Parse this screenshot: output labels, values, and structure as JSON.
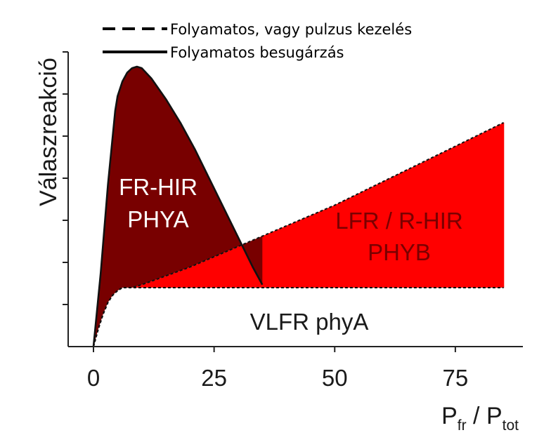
{
  "chart_data": {
    "type": "area",
    "legend": {
      "placement": "top-left",
      "entries": [
        {
          "label": "Folyamatos, vagy pulzus kezelés",
          "line_style": "dashed"
        },
        {
          "label": "Folyamatos besugárzás",
          "line_style": "solid"
        }
      ]
    },
    "ylabel": "Válaszreakció",
    "xlabel": {
      "main": "P",
      "sub1": "fr",
      "mid": " / P",
      "sub2": "tot"
    },
    "x_ticks": [
      "0",
      "25",
      "50",
      "75"
    ],
    "xlim": [
      0,
      89
    ],
    "ylim": [
      0,
      1
    ],
    "y_tick_count": 7,
    "grid": false,
    "regions": [
      {
        "line1": "FR-HIR",
        "line2": "PHYA",
        "color": "#780000",
        "text_color": "#ffffff"
      },
      {
        "line1": "LFR / R-HIR",
        "line2": "PHYB",
        "color": "#ff0000",
        "text_color": "#7a0000"
      },
      {
        "line1": "VLFR phyA",
        "line2": "",
        "color": "#ffffff",
        "text_color": "#1a1a1a"
      }
    ],
    "series": [
      {
        "name": "Folyamatos besugárzás",
        "style": "solid",
        "x": [
          0,
          1.5,
          3,
          4.5,
          5,
          6,
          7,
          8,
          9,
          10,
          12,
          15,
          18,
          21,
          24,
          27,
          30,
          33,
          35
        ],
        "y": [
          0,
          0.25,
          0.55,
          0.8,
          0.85,
          0.9,
          0.93,
          0.945,
          0.95,
          0.945,
          0.91,
          0.84,
          0.76,
          0.67,
          0.57,
          0.47,
          0.37,
          0.27,
          0.21
        ]
      },
      {
        "name": "Folyamatos, vagy pulzus kezelés",
        "style": "dashed",
        "x": [
          0,
          1,
          2,
          3,
          4,
          5,
          6,
          8,
          10,
          20,
          30,
          35,
          40,
          50,
          60,
          70,
          85
        ],
        "y": [
          0,
          0.06,
          0.11,
          0.15,
          0.175,
          0.19,
          0.2,
          0.2,
          0.21,
          0.27,
          0.34,
          0.375,
          0.41,
          0.48,
          0.56,
          0.64,
          0.76
        ]
      }
    ],
    "baseline": {
      "x": [
        0,
        1,
        2,
        3,
        4,
        5,
        6,
        8,
        10,
        20,
        40,
        60,
        85
      ],
      "y": [
        0,
        0.06,
        0.11,
        0.15,
        0.175,
        0.19,
        0.2,
        0.2,
        0.2,
        0.2,
        0.2,
        0.2,
        0.2
      ]
    }
  }
}
